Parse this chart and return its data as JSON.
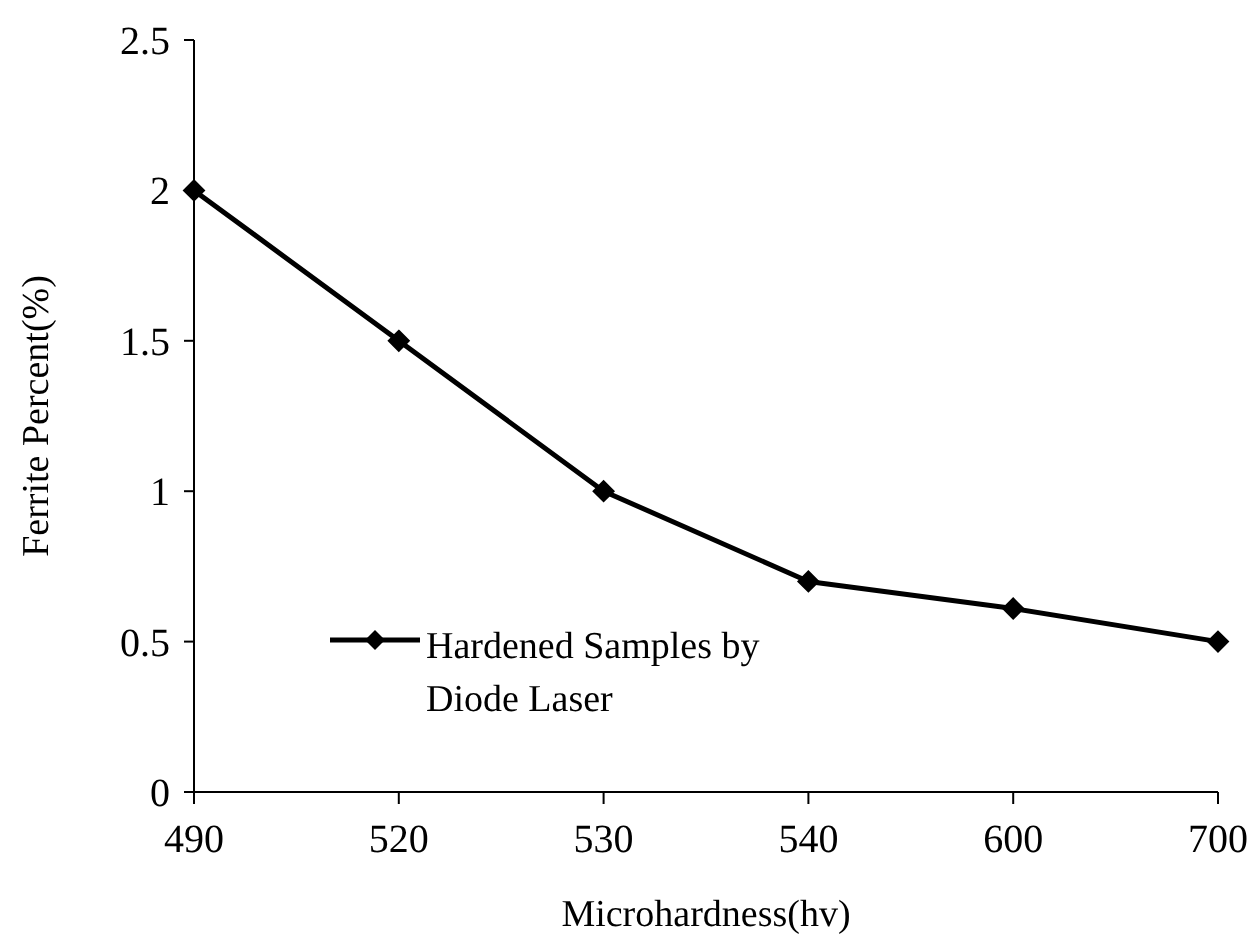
{
  "chart_data": {
    "type": "line",
    "xlabel": "Microhardness(hv)",
    "ylabel": "Ferrite Percent(%)",
    "categories": [
      "490",
      "520",
      "530",
      "540",
      "600",
      "700"
    ],
    "series": [
      {
        "name": "Hardened Samples by Diode Laser",
        "color": "#000000",
        "values": [
          2,
          1.5,
          1,
          0.7,
          0.61,
          0.5
        ]
      }
    ],
    "ylim": [
      0,
      2.5
    ],
    "yticks": [
      0,
      0.5,
      1,
      1.5,
      2,
      2.5
    ],
    "grid": false,
    "legend": "bottom left",
    "marker": "diamond",
    "line_style": "solid"
  }
}
